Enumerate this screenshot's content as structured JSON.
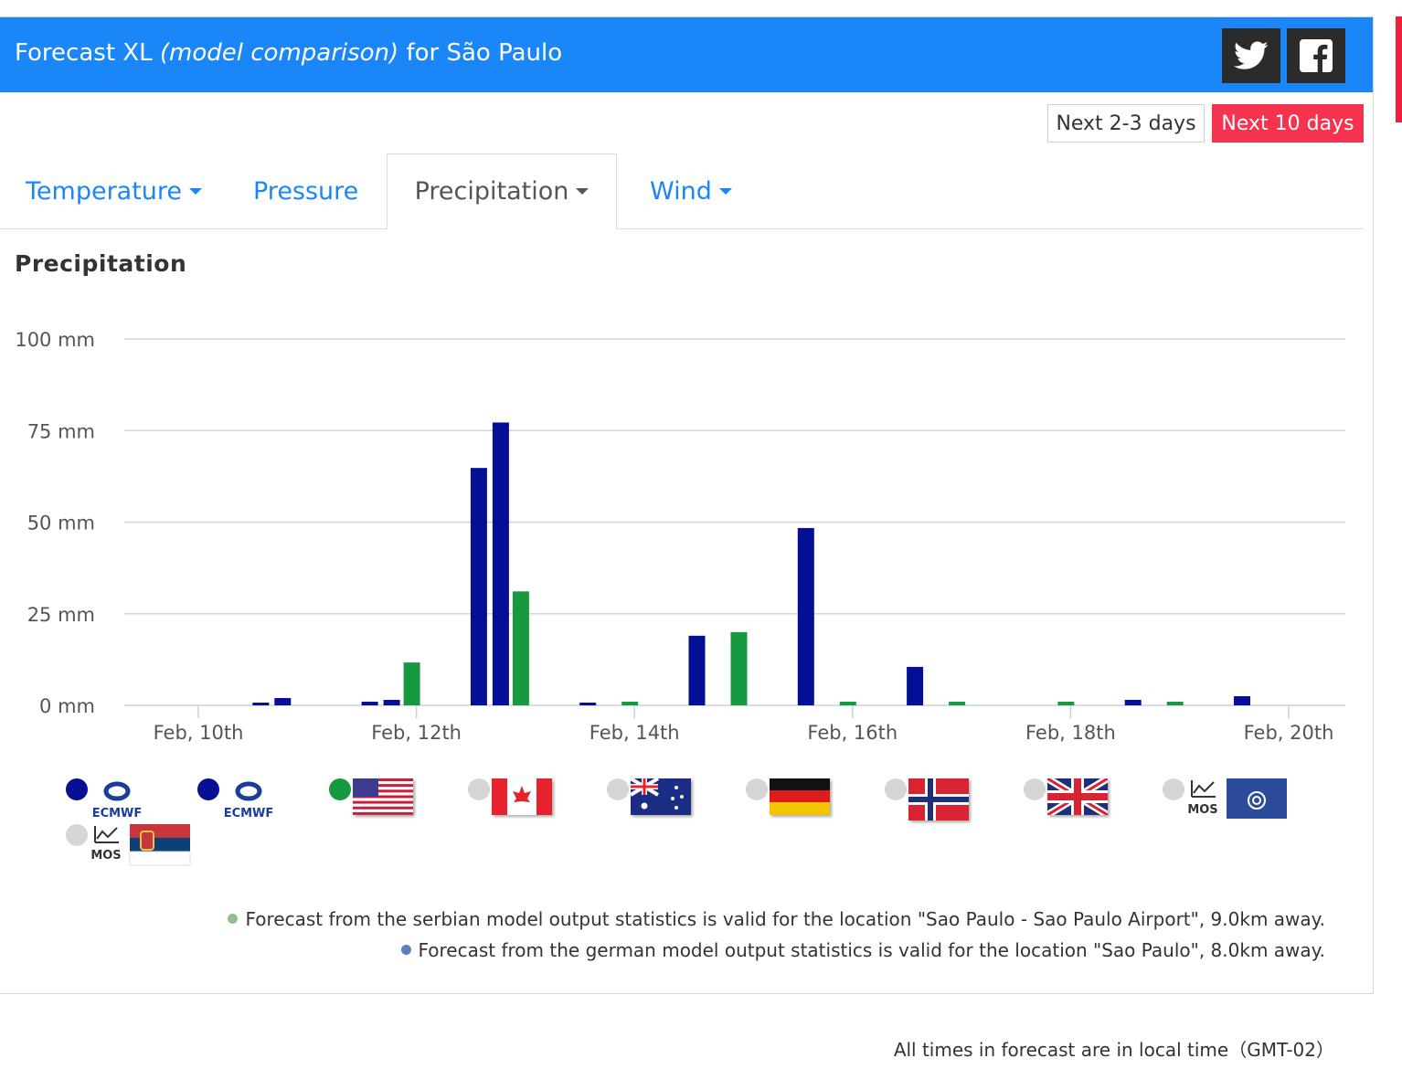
{
  "header": {
    "title_prefix": "Forecast XL",
    "title_italic": "(model comparison)",
    "title_suffix": "for São Paulo"
  },
  "share": {
    "twitter_icon": "twitter-icon",
    "facebook_icon": "facebook-icon"
  },
  "range_buttons": {
    "short": "Next 2-3 days",
    "long": "Next 10 days",
    "active": "long"
  },
  "tabs": [
    {
      "label": "Temperature",
      "dropdown": true
    },
    {
      "label": "Pressure",
      "dropdown": false
    },
    {
      "label": "Precipitation",
      "dropdown": true,
      "active": true
    },
    {
      "label": "Wind",
      "dropdown": true
    }
  ],
  "chart_title": "Precipitation",
  "chart_data": {
    "type": "bar",
    "title": "Precipitation",
    "unit": "mm",
    "ylim": [
      0,
      100
    ],
    "y_ticks": [
      "0 mm",
      "25 mm",
      "50 mm",
      "75 mm",
      "100 mm"
    ],
    "x_ticks": [
      "Feb, 10th",
      "Feb, 12th",
      "Feb, 14th",
      "Feb, 16th",
      "Feb, 18th",
      "Feb, 20th"
    ],
    "grid": true,
    "bars": [
      {
        "day": "Feb 10",
        "model": "ECMWF",
        "value": 0
      },
      {
        "day": "Feb 10",
        "model": "ECMWF",
        "value": 0
      },
      {
        "day": "Feb 10",
        "model": "GFS (USA)",
        "value": 0
      },
      {
        "day": "Feb 11",
        "model": "ECMWF",
        "value": 0.6
      },
      {
        "day": "Feb 11",
        "model": "ECMWF",
        "value": 2
      },
      {
        "day": "Feb 11",
        "model": "GFS (USA)",
        "value": 0
      },
      {
        "day": "Feb 12",
        "model": "ECMWF",
        "value": 1
      },
      {
        "day": "Feb 12",
        "model": "ECMWF",
        "value": 1.5
      },
      {
        "day": "Feb 12",
        "model": "GFS (USA)",
        "value": 11.7
      },
      {
        "day": "Feb 13",
        "model": "ECMWF",
        "value": 64.8
      },
      {
        "day": "Feb 13",
        "model": "ECMWF",
        "value": 77.2
      },
      {
        "day": "Feb 13",
        "model": "GFS (USA)",
        "value": 31.1
      },
      {
        "day": "Feb 14",
        "model": "ECMWF",
        "value": 0.6
      },
      {
        "day": "Feb 14",
        "model": "ECMWF",
        "value": 0
      },
      {
        "day": "Feb 14",
        "model": "GFS (USA)",
        "value": 1
      },
      {
        "day": "Feb 15",
        "model": "ECMWF",
        "value": 19
      },
      {
        "day": "Feb 15",
        "model": "ECMWF",
        "value": 0
      },
      {
        "day": "Feb 15",
        "model": "GFS (USA)",
        "value": 20
      },
      {
        "day": "Feb 16",
        "model": "ECMWF",
        "value": 48.4
      },
      {
        "day": "Feb 16",
        "model": "ECMWF",
        "value": 0
      },
      {
        "day": "Feb 16",
        "model": "GFS (USA)",
        "value": 1
      },
      {
        "day": "Feb 17",
        "model": "ECMWF",
        "value": 10.5
      },
      {
        "day": "Feb 17",
        "model": "ECMWF",
        "value": 0
      },
      {
        "day": "Feb 17",
        "model": "GFS (USA)",
        "value": 1
      },
      {
        "day": "Feb 18",
        "model": "ECMWF",
        "value": 0
      },
      {
        "day": "Feb 18",
        "model": "ECMWF",
        "value": 0
      },
      {
        "day": "Feb 18",
        "model": "GFS (USA)",
        "value": 1
      },
      {
        "day": "Feb 19",
        "model": "ECMWF",
        "value": 1.5
      },
      {
        "day": "Feb 19",
        "model": "ECMWF",
        "value": 0
      },
      {
        "day": "Feb 19",
        "model": "GFS (USA)",
        "value": 1
      },
      {
        "day": "Feb 20",
        "model": "ECMWF",
        "value": 2.5
      },
      {
        "day": "Feb 20",
        "model": "ECMWF",
        "value": 0
      },
      {
        "day": "Feb 20",
        "model": "GFS (USA)",
        "value": 0
      }
    ],
    "colors": {
      "ecmwf": "#050f96",
      "gfs": "#16993f",
      "inactive": "#d6d6d6"
    }
  },
  "legend": [
    {
      "model": "ecmwf",
      "icon": "ecmwf-logo-icon",
      "label": "ECMWF",
      "active": true,
      "color": "#050f96"
    },
    {
      "model": "ecmwf",
      "icon": "ecmwf-logo-icon",
      "label": "ECMWF",
      "active": true,
      "color": "#050f96"
    },
    {
      "model": "usa",
      "icon": "usa-flag-icon",
      "active": true,
      "color": "#16993f"
    },
    {
      "model": "canada",
      "icon": "canada-flag-icon",
      "active": false,
      "color": "#d6d6d6"
    },
    {
      "model": "australia",
      "icon": "australia-flag-icon",
      "active": false,
      "color": "#d6d6d6"
    },
    {
      "model": "germany",
      "icon": "germany-flag-icon",
      "active": false,
      "color": "#d6d6d6"
    },
    {
      "model": "norway",
      "icon": "norway-flag-icon",
      "active": false,
      "color": "#d6d6d6"
    },
    {
      "model": "uk",
      "icon": "uk-flag-icon",
      "active": false,
      "color": "#d6d6d6"
    },
    {
      "model": "dwd-mos",
      "icon": "mos-dwd-icon",
      "label": "MOS",
      "active": false,
      "color": "#d6d6d6"
    },
    {
      "model": "serbia-mos",
      "icon": "mos-serbia-icon",
      "label": "MOS",
      "active": false,
      "color": "#d6d6d6"
    }
  ],
  "notes": [
    {
      "text": "Forecast from the serbian model output statistics is valid for the location \"Sao Paulo - Sao Paulo Airport\", 9.0km away.",
      "color": "#8fbf8f"
    },
    {
      "text": "Forecast from the german model output statistics is valid for the location \"Sao Paulo\", 8.0km away.",
      "color": "#5b7fc0"
    }
  ],
  "footer_note": "All times in forecast are in local time（GMT-02）"
}
